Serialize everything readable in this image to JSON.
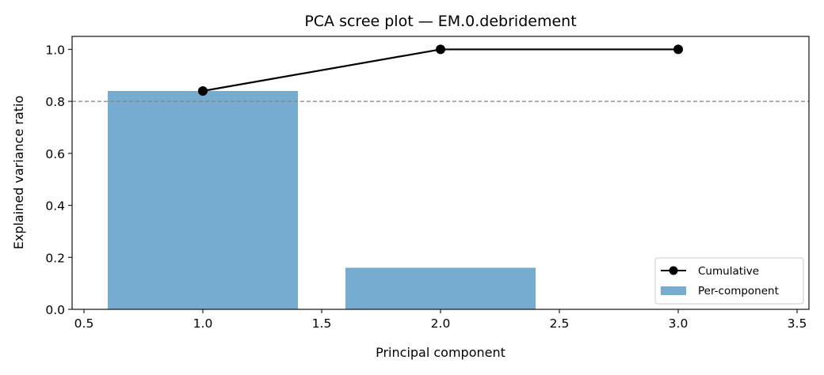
{
  "chart_data": {
    "type": "bar",
    "title": "PCA scree plot — EM.0.debridement",
    "xlabel": "Principal component",
    "ylabel": "Explained variance ratio",
    "xlim": [
      0.45,
      3.55
    ],
    "ylim": [
      0.0,
      1.05
    ],
    "xticks": [
      "0.5",
      "1.0",
      "1.5",
      "2.0",
      "2.5",
      "3.0",
      "3.5"
    ],
    "yticks": [
      "0.0",
      "0.2",
      "0.4",
      "0.6",
      "0.8",
      "1.0"
    ],
    "grid": false,
    "legend_position": "lower right",
    "threshold_line": {
      "y": 0.8,
      "style": "dashed",
      "color": "#808080"
    },
    "series": [
      {
        "name": "Per-component",
        "type": "bar",
        "color": "#77acd1",
        "x": [
          1,
          2,
          3
        ],
        "values": [
          0.84,
          0.16,
          0.0
        ]
      },
      {
        "name": "Cumulative",
        "type": "line",
        "color": "#000000",
        "marker": "o",
        "x": [
          1,
          2,
          3
        ],
        "values": [
          0.84,
          1.0,
          1.0
        ]
      }
    ]
  },
  "legend": {
    "cumulative_label": "Cumulative",
    "per_component_label": "Per-component"
  }
}
